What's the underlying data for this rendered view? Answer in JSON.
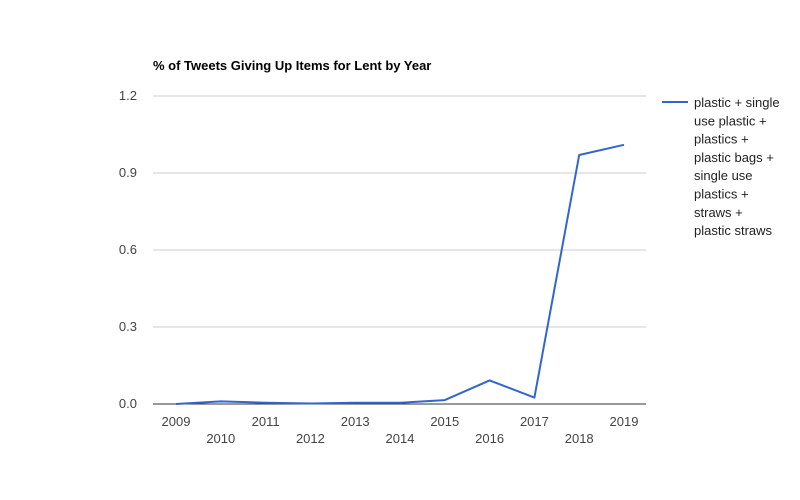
{
  "chart_data": {
    "type": "line",
    "title": "% of Tweets Giving Up Items for Lent by Year",
    "xlabel": "",
    "ylabel": "",
    "x": [
      "2009",
      "2010",
      "2011",
      "2012",
      "2013",
      "2014",
      "2015",
      "2016",
      "2017",
      "2018",
      "2019"
    ],
    "ylim": [
      0,
      1.2
    ],
    "yticks": [
      "0.0",
      "0.3",
      "0.6",
      "0.9",
      "1.2"
    ],
    "grid": true,
    "legend_position": "right",
    "series": [
      {
        "name": "plastic + single use plastic + plastics + plastic bags + single use plastics + straws + plastic straws",
        "legend_lines": [
          "plastic + single",
          "use plastic +",
          "plastics +",
          "plastic bags +",
          "single use",
          "plastics +",
          "straws +",
          "plastic straws"
        ],
        "color": "#3366cc",
        "values": [
          0.0,
          0.01,
          0.005,
          0.002,
          0.005,
          0.005,
          0.015,
          0.092,
          0.025,
          0.97,
          1.01
        ]
      }
    ]
  }
}
